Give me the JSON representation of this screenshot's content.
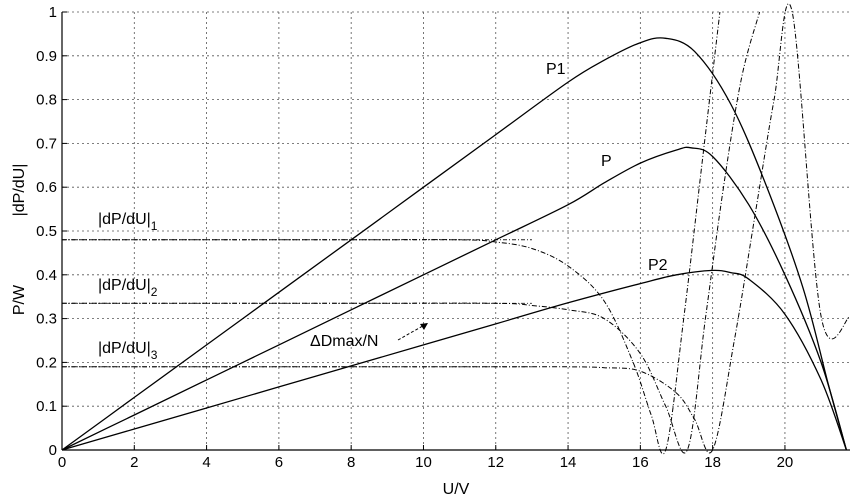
{
  "chart_data": {
    "type": "line",
    "xlabel": "U/V",
    "ylabel_power": "P/W",
    "ylabel_derivative": "|dP/dU|",
    "xlim": [
      0,
      21.8
    ],
    "ylim": [
      0,
      1
    ],
    "x_ticks": [
      "0",
      "2",
      "4",
      "6",
      "8",
      "10",
      "12",
      "14",
      "16",
      "18",
      "20"
    ],
    "y_ticks": [
      "0",
      "0.1",
      "0.2",
      "0.3",
      "0.4",
      "0.5",
      "0.6",
      "0.7",
      "0.8",
      "0.9",
      "1"
    ],
    "grid": true,
    "series": [
      {
        "name": "P1",
        "style": "solid",
        "x": [
          0,
          2,
          4,
          6,
          8,
          10,
          12,
          14,
          15,
          16,
          16.7,
          17.5,
          18.5,
          19.5,
          20.5,
          21.2,
          21.7
        ],
        "y": [
          0,
          0.12,
          0.24,
          0.36,
          0.48,
          0.6,
          0.72,
          0.84,
          0.89,
          0.93,
          0.94,
          0.91,
          0.79,
          0.6,
          0.37,
          0.15,
          0
        ]
      },
      {
        "name": "P",
        "style": "solid",
        "x": [
          0,
          2,
          4,
          6,
          8,
          10,
          12,
          14,
          15,
          16,
          17,
          17.4,
          18,
          19,
          20,
          21,
          21.7
        ],
        "y": [
          0,
          0.08,
          0.16,
          0.24,
          0.32,
          0.4,
          0.48,
          0.56,
          0.61,
          0.655,
          0.685,
          0.69,
          0.67,
          0.56,
          0.4,
          0.2,
          0
        ]
      },
      {
        "name": "P2",
        "style": "solid",
        "x": [
          0,
          2,
          4,
          6,
          8,
          10,
          12,
          14,
          16,
          17,
          18,
          18.5,
          19,
          20,
          21,
          21.7
        ],
        "y": [
          0,
          0.048,
          0.096,
          0.144,
          0.192,
          0.24,
          0.288,
          0.336,
          0.38,
          0.4,
          0.41,
          0.405,
          0.39,
          0.31,
          0.16,
          0
        ]
      },
      {
        "name": "|dP/dU|1",
        "style": "dashdot",
        "x": [
          0,
          4,
          8,
          11,
          12,
          13,
          14,
          15,
          15.8,
          16.3,
          16.7,
          17.2,
          17.7,
          18.2
        ],
        "y": [
          0.48,
          0.48,
          0.48,
          0.48,
          0.475,
          0.46,
          0.42,
          0.34,
          0.2,
          0.08,
          0,
          0.3,
          0.65,
          1
        ]
      },
      {
        "name": "|dP/dU|2",
        "style": "dashdot",
        "x": [
          0,
          4,
          8,
          12,
          13,
          14,
          15,
          16,
          16.7,
          17.3,
          17.8,
          18.3,
          18.8,
          19.3
        ],
        "y": [
          0.335,
          0.335,
          0.335,
          0.335,
          0.33,
          0.32,
          0.3,
          0.22,
          0.1,
          0,
          0.3,
          0.6,
          0.85,
          1
        ]
      },
      {
        "name": "|dP/dU|3",
        "style": "dashdot",
        "x": [
          0,
          4,
          8,
          12,
          14,
          15,
          16,
          17,
          17.5,
          18,
          18.6,
          19.2,
          19.7,
          20.2,
          21,
          21.8
        ],
        "y": [
          0.19,
          0.19,
          0.19,
          0.19,
          0.19,
          0.188,
          0.18,
          0.13,
          0.07,
          0,
          0.25,
          0.55,
          0.8,
          1,
          0.305,
          0.305
        ]
      }
    ],
    "annotations": {
      "p1": "P1",
      "p": "P",
      "p2": "P2",
      "d1_base": "|dP/dU|",
      "d1_sub": "1",
      "d2_base": "|dP/dU|",
      "d2_sub": "2",
      "d3_base": "|dP/dU|",
      "d3_sub": "3",
      "delta": "ΔDmax/N"
    },
    "reference_lines": [
      0.48,
      0.335,
      0.19
    ]
  }
}
